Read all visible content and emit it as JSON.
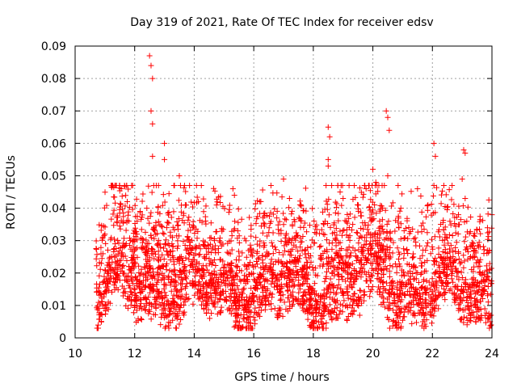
{
  "chart_data": {
    "type": "scatter",
    "title": "Day 319 of 2021, Rate Of TEC Index for receiver edsv",
    "xlabel": "GPS time / hours",
    "ylabel": "ROTI / TECUs",
    "xlim": [
      10,
      24
    ],
    "ylim": [
      0,
      0.09
    ],
    "x_ticks": [
      10,
      12,
      14,
      16,
      18,
      20,
      22,
      24
    ],
    "x_tick_labels": [
      "10",
      "12",
      "14",
      "16",
      "18",
      "20",
      "22",
      "24"
    ],
    "y_ticks": [
      0,
      0.01,
      0.02,
      0.03,
      0.04,
      0.05,
      0.06,
      0.07,
      0.08,
      0.09
    ],
    "y_tick_labels": [
      "0",
      "0.01",
      "0.02",
      "0.03",
      "0.04",
      "0.05",
      "0.06",
      "0.07",
      "0.08",
      "0.09"
    ],
    "grid": true,
    "marker": "+",
    "color": "#ff0000",
    "series": [
      {
        "name": "ROTI",
        "data_range": {
          "x_start": 10.7,
          "x_end": 24.0,
          "y_min": 0.003,
          "y_max": 0.087
        },
        "peaks": [
          {
            "x": 11.55,
            "y": 0.046
          },
          {
            "x": 11.75,
            "y": 0.042
          },
          {
            "x": 12.5,
            "y": 0.087
          },
          {
            "x": 12.55,
            "y": 0.084
          },
          {
            "x": 12.6,
            "y": 0.08
          },
          {
            "x": 12.55,
            "y": 0.07
          },
          {
            "x": 12.6,
            "y": 0.066
          },
          {
            "x": 12.6,
            "y": 0.056
          },
          {
            "x": 13.0,
            "y": 0.06
          },
          {
            "x": 13.0,
            "y": 0.055
          },
          {
            "x": 13.5,
            "y": 0.05
          },
          {
            "x": 13.7,
            "y": 0.041
          },
          {
            "x": 15.3,
            "y": 0.046
          },
          {
            "x": 15.35,
            "y": 0.044
          },
          {
            "x": 17.0,
            "y": 0.049
          },
          {
            "x": 17.2,
            "y": 0.043
          },
          {
            "x": 18.5,
            "y": 0.065
          },
          {
            "x": 18.55,
            "y": 0.062
          },
          {
            "x": 18.5,
            "y": 0.055
          },
          {
            "x": 18.5,
            "y": 0.053
          },
          {
            "x": 19.0,
            "y": 0.043
          },
          {
            "x": 20.0,
            "y": 0.052
          },
          {
            "x": 20.1,
            "y": 0.048
          },
          {
            "x": 20.45,
            "y": 0.07
          },
          {
            "x": 20.5,
            "y": 0.068
          },
          {
            "x": 20.55,
            "y": 0.064
          },
          {
            "x": 20.5,
            "y": 0.05
          },
          {
            "x": 21.5,
            "y": 0.046
          },
          {
            "x": 22.05,
            "y": 0.06
          },
          {
            "x": 22.1,
            "y": 0.056
          },
          {
            "x": 22.05,
            "y": 0.047
          },
          {
            "x": 23.05,
            "y": 0.058
          },
          {
            "x": 23.1,
            "y": 0.057
          },
          {
            "x": 23.0,
            "y": 0.049
          },
          {
            "x": 23.1,
            "y": 0.043
          },
          {
            "x": 24.0,
            "y": 0.038
          }
        ]
      }
    ]
  }
}
